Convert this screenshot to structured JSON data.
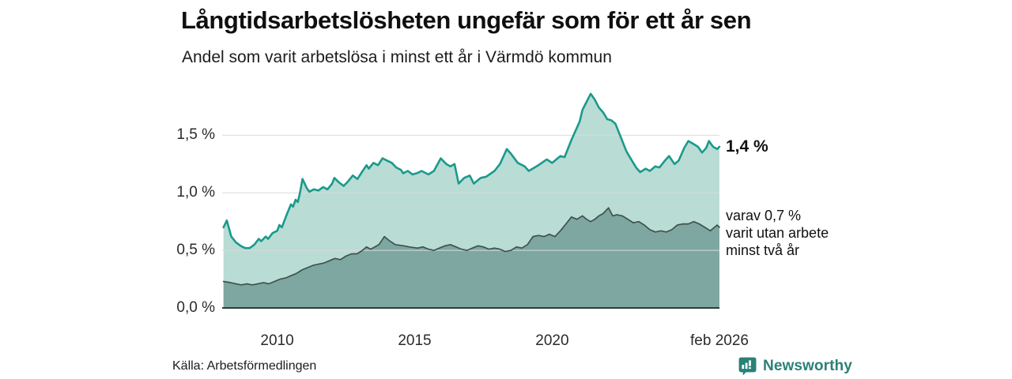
{
  "colors": {
    "brand_teal": "#2a8176",
    "text_dark": "#111111"
  },
  "footer": {
    "source": "Källa: Arbetsförmedlingen",
    "brand": "Newsworthy"
  },
  "chart_data": {
    "type": "area",
    "title": "Långtidsarbetslösheten ungefär som för ett år sen",
    "subtitle": "Andel som varit arbetslösa i minst ett år i Värmdö kommun",
    "grid": true,
    "grid_color": "#d7dbda",
    "baseline_color": "#2d3c39",
    "legend_position": "end-of-line-labels",
    "x_axis": {
      "range": [
        2008.0,
        2026.083
      ],
      "ticks": [
        {
          "t": 2010.0,
          "label": "2010"
        },
        {
          "t": 2015.0,
          "label": "2015"
        },
        {
          "t": 2020.0,
          "label": "2020"
        },
        {
          "t": 2026.083,
          "label": "feb 2026"
        }
      ]
    },
    "y_axis": {
      "unit": "%",
      "range": [
        0,
        1.9
      ],
      "ticks": [
        {
          "v": 0.0,
          "label": "0,0 %"
        },
        {
          "v": 0.5,
          "label": "0,5 %"
        },
        {
          "v": 1.0,
          "label": "1,0 %"
        },
        {
          "v": 1.5,
          "label": "1,5 %"
        }
      ]
    },
    "series": [
      {
        "name": "Andel som varit arbetslösa i minst ett år",
        "line_color": "#1a9a8c",
        "fill_color": "#b9dcd5",
        "end_value": 1.4,
        "end_label": "1,4 %",
        "points": [
          [
            2008.05,
            0.7
          ],
          [
            2008.17,
            0.76
          ],
          [
            2008.33,
            0.62
          ],
          [
            2008.5,
            0.57
          ],
          [
            2008.67,
            0.54
          ],
          [
            2008.83,
            0.52
          ],
          [
            2009.0,
            0.52
          ],
          [
            2009.17,
            0.55
          ],
          [
            2009.33,
            0.6
          ],
          [
            2009.42,
            0.58
          ],
          [
            2009.58,
            0.62
          ],
          [
            2009.67,
            0.6
          ],
          [
            2009.83,
            0.65
          ],
          [
            2010.0,
            0.67
          ],
          [
            2010.08,
            0.72
          ],
          [
            2010.17,
            0.7
          ],
          [
            2010.33,
            0.8
          ],
          [
            2010.5,
            0.9
          ],
          [
            2010.58,
            0.88
          ],
          [
            2010.67,
            0.94
          ],
          [
            2010.75,
            0.92
          ],
          [
            2010.83,
            1.0
          ],
          [
            2010.92,
            1.12
          ],
          [
            2011.08,
            1.04
          ],
          [
            2011.17,
            1.01
          ],
          [
            2011.33,
            1.03
          ],
          [
            2011.5,
            1.02
          ],
          [
            2011.67,
            1.05
          ],
          [
            2011.83,
            1.03
          ],
          [
            2012.0,
            1.08
          ],
          [
            2012.08,
            1.13
          ],
          [
            2012.25,
            1.09
          ],
          [
            2012.42,
            1.06
          ],
          [
            2012.58,
            1.1
          ],
          [
            2012.75,
            1.15
          ],
          [
            2012.92,
            1.12
          ],
          [
            2013.08,
            1.18
          ],
          [
            2013.25,
            1.24
          ],
          [
            2013.33,
            1.21
          ],
          [
            2013.5,
            1.26
          ],
          [
            2013.67,
            1.24
          ],
          [
            2013.83,
            1.3
          ],
          [
            2014.0,
            1.28
          ],
          [
            2014.17,
            1.26
          ],
          [
            2014.33,
            1.22
          ],
          [
            2014.5,
            1.2
          ],
          [
            2014.58,
            1.17
          ],
          [
            2014.75,
            1.19
          ],
          [
            2014.92,
            1.16
          ],
          [
            2015.08,
            1.17
          ],
          [
            2015.25,
            1.19
          ],
          [
            2015.5,
            1.16
          ],
          [
            2015.7,
            1.19
          ],
          [
            2015.95,
            1.3
          ],
          [
            2016.15,
            1.25
          ],
          [
            2016.3,
            1.23
          ],
          [
            2016.45,
            1.25
          ],
          [
            2016.6,
            1.08
          ],
          [
            2016.8,
            1.13
          ],
          [
            2017.0,
            1.15
          ],
          [
            2017.15,
            1.08
          ],
          [
            2017.4,
            1.13
          ],
          [
            2017.6,
            1.14
          ],
          [
            2017.9,
            1.19
          ],
          [
            2018.1,
            1.25
          ],
          [
            2018.35,
            1.38
          ],
          [
            2018.5,
            1.34
          ],
          [
            2018.75,
            1.26
          ],
          [
            2019.0,
            1.23
          ],
          [
            2019.15,
            1.19
          ],
          [
            2019.5,
            1.24
          ],
          [
            2019.8,
            1.29
          ],
          [
            2020.0,
            1.26
          ],
          [
            2020.3,
            1.32
          ],
          [
            2020.45,
            1.31
          ],
          [
            2020.7,
            1.46
          ],
          [
            2020.85,
            1.54
          ],
          [
            2021.0,
            1.62
          ],
          [
            2021.1,
            1.72
          ],
          [
            2021.25,
            1.79
          ],
          [
            2021.4,
            1.86
          ],
          [
            2021.55,
            1.81
          ],
          [
            2021.7,
            1.74
          ],
          [
            2021.85,
            1.7
          ],
          [
            2022.0,
            1.64
          ],
          [
            2022.15,
            1.63
          ],
          [
            2022.3,
            1.6
          ],
          [
            2022.5,
            1.48
          ],
          [
            2022.7,
            1.36
          ],
          [
            2022.9,
            1.28
          ],
          [
            2023.05,
            1.22
          ],
          [
            2023.2,
            1.18
          ],
          [
            2023.4,
            1.21
          ],
          [
            2023.55,
            1.19
          ],
          [
            2023.75,
            1.23
          ],
          [
            2023.9,
            1.22
          ],
          [
            2024.1,
            1.28
          ],
          [
            2024.25,
            1.32
          ],
          [
            2024.45,
            1.25
          ],
          [
            2024.6,
            1.28
          ],
          [
            2024.8,
            1.39
          ],
          [
            2024.95,
            1.45
          ],
          [
            2025.1,
            1.43
          ],
          [
            2025.3,
            1.4
          ],
          [
            2025.45,
            1.35
          ],
          [
            2025.6,
            1.39
          ],
          [
            2025.7,
            1.45
          ],
          [
            2025.85,
            1.4
          ],
          [
            2026.0,
            1.38
          ],
          [
            2026.08,
            1.4
          ]
        ]
      },
      {
        "name": "varav varit utan arbete minst två år",
        "line_color": "#3f524d",
        "fill_color": "#7da7a0",
        "end_value": 0.7,
        "end_label": "varav 0,7 %\nvarit utan arbete\nminst två år",
        "points": [
          [
            2008.05,
            0.23
          ],
          [
            2008.3,
            0.22
          ],
          [
            2008.5,
            0.21
          ],
          [
            2008.7,
            0.2
          ],
          [
            2008.9,
            0.21
          ],
          [
            2009.1,
            0.2
          ],
          [
            2009.3,
            0.21
          ],
          [
            2009.5,
            0.22
          ],
          [
            2009.7,
            0.21
          ],
          [
            2009.9,
            0.23
          ],
          [
            2010.1,
            0.25
          ],
          [
            2010.3,
            0.26
          ],
          [
            2010.5,
            0.28
          ],
          [
            2010.7,
            0.3
          ],
          [
            2010.9,
            0.33
          ],
          [
            2011.1,
            0.35
          ],
          [
            2011.3,
            0.37
          ],
          [
            2011.5,
            0.38
          ],
          [
            2011.7,
            0.39
          ],
          [
            2011.9,
            0.41
          ],
          [
            2012.1,
            0.43
          ],
          [
            2012.3,
            0.42
          ],
          [
            2012.5,
            0.45
          ],
          [
            2012.7,
            0.47
          ],
          [
            2012.9,
            0.47
          ],
          [
            2013.1,
            0.5
          ],
          [
            2013.25,
            0.53
          ],
          [
            2013.4,
            0.51
          ],
          [
            2013.55,
            0.53
          ],
          [
            2013.7,
            0.55
          ],
          [
            2013.9,
            0.62
          ],
          [
            2014.1,
            0.58
          ],
          [
            2014.3,
            0.55
          ],
          [
            2014.6,
            0.54
          ],
          [
            2014.8,
            0.53
          ],
          [
            2015.1,
            0.52
          ],
          [
            2015.3,
            0.53
          ],
          [
            2015.5,
            0.51
          ],
          [
            2015.7,
            0.5
          ],
          [
            2015.9,
            0.52
          ],
          [
            2016.1,
            0.54
          ],
          [
            2016.3,
            0.55
          ],
          [
            2016.5,
            0.53
          ],
          [
            2016.7,
            0.51
          ],
          [
            2016.9,
            0.5
          ],
          [
            2017.1,
            0.52
          ],
          [
            2017.3,
            0.54
          ],
          [
            2017.5,
            0.53
          ],
          [
            2017.7,
            0.51
          ],
          [
            2017.9,
            0.52
          ],
          [
            2018.1,
            0.51
          ],
          [
            2018.3,
            0.49
          ],
          [
            2018.5,
            0.5
          ],
          [
            2018.7,
            0.53
          ],
          [
            2018.9,
            0.52
          ],
          [
            2019.1,
            0.55
          ],
          [
            2019.3,
            0.62
          ],
          [
            2019.5,
            0.63
          ],
          [
            2019.7,
            0.62
          ],
          [
            2019.9,
            0.64
          ],
          [
            2020.1,
            0.62
          ],
          [
            2020.3,
            0.67
          ],
          [
            2020.5,
            0.73
          ],
          [
            2020.7,
            0.79
          ],
          [
            2020.9,
            0.77
          ],
          [
            2021.1,
            0.8
          ],
          [
            2021.25,
            0.77
          ],
          [
            2021.4,
            0.75
          ],
          [
            2021.55,
            0.77
          ],
          [
            2021.7,
            0.8
          ],
          [
            2021.85,
            0.82
          ],
          [
            2022.05,
            0.87
          ],
          [
            2022.2,
            0.8
          ],
          [
            2022.35,
            0.81
          ],
          [
            2022.55,
            0.8
          ],
          [
            2022.75,
            0.77
          ],
          [
            2022.95,
            0.74
          ],
          [
            2023.15,
            0.75
          ],
          [
            2023.35,
            0.72
          ],
          [
            2023.55,
            0.68
          ],
          [
            2023.75,
            0.66
          ],
          [
            2023.95,
            0.67
          ],
          [
            2024.15,
            0.66
          ],
          [
            2024.35,
            0.68
          ],
          [
            2024.55,
            0.72
          ],
          [
            2024.75,
            0.73
          ],
          [
            2024.95,
            0.73
          ],
          [
            2025.15,
            0.75
          ],
          [
            2025.35,
            0.73
          ],
          [
            2025.55,
            0.7
          ],
          [
            2025.75,
            0.67
          ],
          [
            2025.9,
            0.7
          ],
          [
            2026.0,
            0.72
          ],
          [
            2026.08,
            0.7
          ]
        ]
      }
    ]
  }
}
